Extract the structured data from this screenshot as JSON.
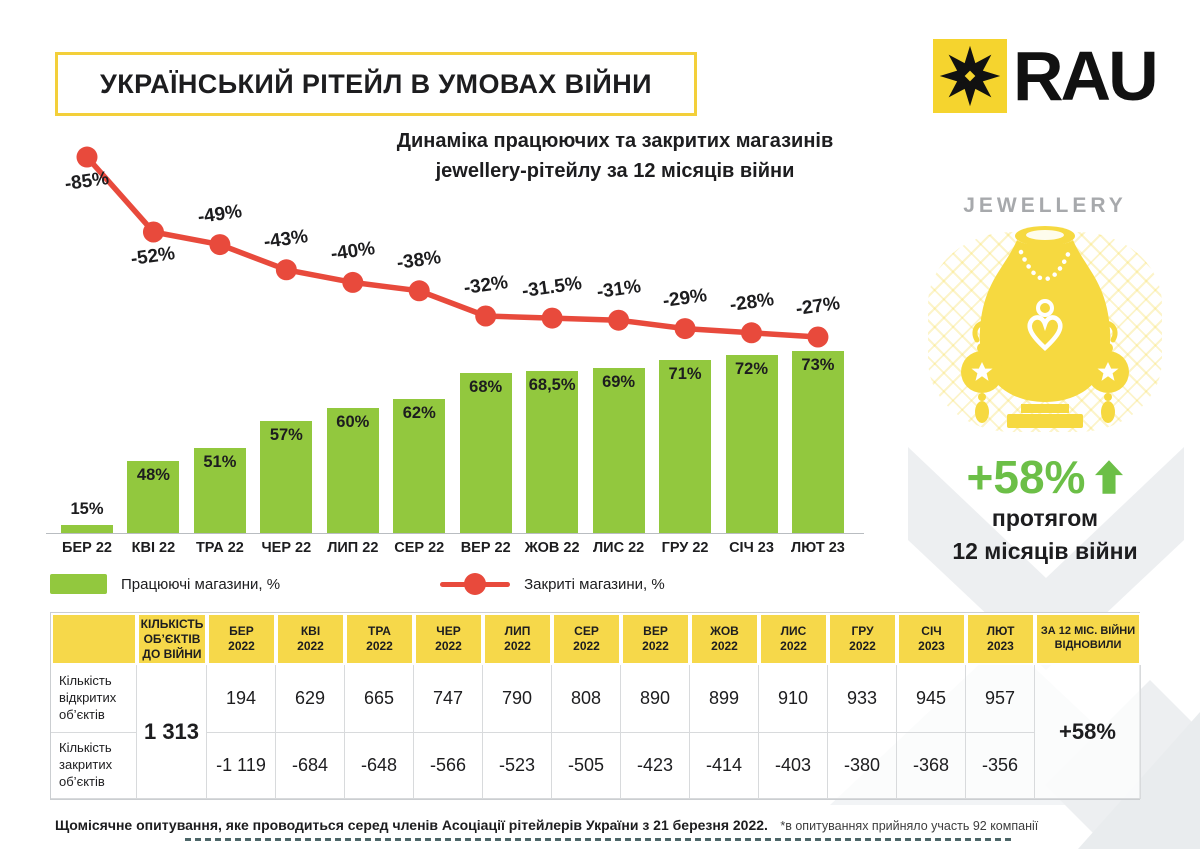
{
  "header": {
    "title": "УКРАЇНСЬКИЙ РІТЕЙЛ В УМОВАХ ВІЙНИ",
    "logo_text": "RAU"
  },
  "chart": {
    "title_line1": "Динаміка працюючих та закритих магазинів",
    "title_line2": "jewellery-рітейлу за 12 місяців війни",
    "legend": [
      {
        "label": "Працюючі магазини, %",
        "color": "#92c83e",
        "type": "bar"
      },
      {
        "label": "Закриті магазини, %",
        "color": "#e84a3c",
        "type": "line"
      }
    ]
  },
  "chart_data": {
    "type": "bar+line",
    "title": "Динаміка працюючих та закритих магазинів jewellery-рітейлу за 12 місяців війни",
    "categories": [
      "БЕР 22",
      "КВІ 22",
      "ТРА 22",
      "ЧЕР 22",
      "ЛИП 22",
      "СЕР 22",
      "ВЕР 22",
      "ЖОВ 22",
      "ЛИС 22",
      "ГРУ 22",
      "СІЧ 23",
      "ЛЮТ 23"
    ],
    "series": [
      {
        "name": "Працюючі магазини, %",
        "type": "bar",
        "color": "#92c83e",
        "values": [
          15,
          48,
          51,
          57,
          60,
          62,
          68,
          68.5,
          69,
          71,
          72,
          73
        ],
        "labels": [
          "15%",
          "48%",
          "51%",
          "57%",
          "60%",
          "62%",
          "68%",
          "68,5%",
          "69%",
          "71%",
          "72%",
          "73%"
        ]
      },
      {
        "name": "Закриті магазини, %",
        "type": "line",
        "color": "#e84a3c",
        "values": [
          -85,
          -52,
          -49,
          -43,
          -40,
          -38,
          -32,
          -31.5,
          -31,
          -29,
          -28,
          -27
        ],
        "labels": [
          "-85%",
          "-52%",
          "-49%",
          "-43%",
          "-40%",
          "-38%",
          "-32%",
          "-31.5%",
          "-31%",
          "-29%",
          "-28%",
          "-27%"
        ]
      }
    ],
    "ylim_bar": [
      0,
      100
    ],
    "ylim_line": [
      -100,
      0
    ],
    "grid": false,
    "legend_position": "bottom"
  },
  "panel": {
    "category_label": "JEWELLERY",
    "growth_value": "+58%",
    "growth_caption_line1": "протягом",
    "growth_caption_line2": "12 місяців війни"
  },
  "table": {
    "prewar_header": "КІЛЬКІСТЬ ОБ’ЄКТІВ ДО ВІЙНИ",
    "months": [
      [
        "БЕР",
        "2022"
      ],
      [
        "КВІ",
        "2022"
      ],
      [
        "ТРА",
        "2022"
      ],
      [
        "ЧЕР",
        "2022"
      ],
      [
        "ЛИП",
        "2022"
      ],
      [
        "СЕР",
        "2022"
      ],
      [
        "ВЕР",
        "2022"
      ],
      [
        "ЖОВ",
        "2022"
      ],
      [
        "ЛИС",
        "2022"
      ],
      [
        "ГРУ",
        "2022"
      ],
      [
        "СІЧ",
        "2023"
      ],
      [
        "ЛЮТ",
        "2023"
      ]
    ],
    "recovered_header": "ЗА 12 МІС. ВІЙНИ ВІДНОВИЛИ",
    "prewar_value": "1 313",
    "recovered_value": "+58%",
    "rows": [
      {
        "label": "Кількість відкритих об’єктів",
        "values": [
          "194",
          "629",
          "665",
          "747",
          "790",
          "808",
          "890",
          "899",
          "910",
          "933",
          "945",
          "957"
        ]
      },
      {
        "label": "Кількість закритих об’єктів",
        "values": [
          "-1 119",
          "-684",
          "-648",
          "-566",
          "-523",
          "-505",
          "-423",
          "-414",
          "-403",
          "-380",
          "-368",
          "-356"
        ]
      }
    ]
  },
  "footer": {
    "note_bold": "Щомісячне опитування, яке проводиться серед членів Асоціації рітейлерів України з 21 березня 2022.",
    "note_light": "*в опитуваннях прийняло участь 92 компанії"
  },
  "colors": {
    "bar_green": "#92c83e",
    "line_red": "#e84a3c",
    "accent_yellow": "#f6d84a",
    "growth_green": "#6cbf47"
  }
}
